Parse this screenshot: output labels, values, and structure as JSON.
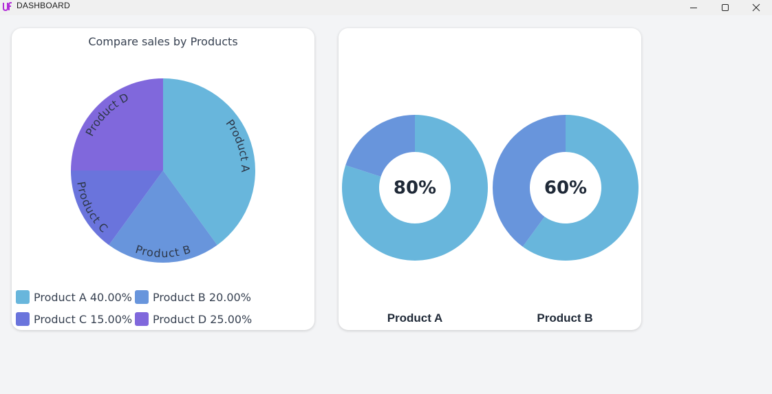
{
  "app": {
    "title": "DASHBOARD",
    "icons": {
      "logo": "app-logo-icon",
      "minimize": "minimize-icon",
      "maximize": "maximize-icon",
      "close": "close-icon"
    }
  },
  "colors": {
    "product_a": "#68b6dc",
    "product_b": "#6895dc",
    "product_c": "#6a74dc",
    "product_d": "#8068dc",
    "page_bg": "#f3f4f6",
    "card_bg": "#ffffff"
  },
  "chart_data": [
    {
      "type": "pie",
      "title": "Compare sales by Products",
      "categories": [
        "Product A",
        "Product B",
        "Product C",
        "Product D"
      ],
      "values": [
        40,
        20,
        15,
        25
      ],
      "legend": [
        "Product A 40.00%",
        "Product B 20.00%",
        "Product C 15.00%",
        "Product D 25.00%"
      ],
      "legend_placement": "bottom"
    },
    {
      "type": "pie",
      "title": "",
      "donuts": [
        {
          "name": "Product A",
          "value": 80,
          "center_text": "80%"
        },
        {
          "name": "Product B",
          "value": 60,
          "center_text": "60%"
        }
      ]
    }
  ]
}
